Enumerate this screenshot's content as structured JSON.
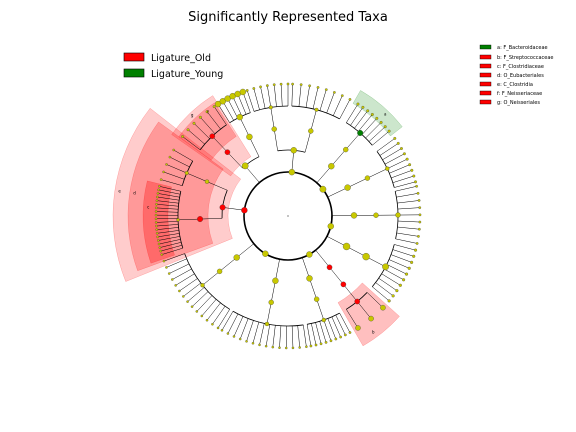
{
  "chart_data": {
    "type": "cladogram",
    "title": "Significantly Represented Taxa",
    "groups": [
      {
        "name": "Ligature_Old",
        "color": "#ff0000"
      },
      {
        "name": "Ligature_Young",
        "color": "#008000"
      }
    ],
    "neutral_color": "#c8c800",
    "taxa_legend": [
      {
        "letter": "a",
        "label": "a: F_Bacteroidaceae",
        "group": "Ligature_Young"
      },
      {
        "letter": "b",
        "label": "b: F_Streptococcaceae",
        "group": "Ligature_Old"
      },
      {
        "letter": "c",
        "label": "c: F_Clostridiaceae",
        "group": "Ligature_Old"
      },
      {
        "letter": "d",
        "label": "d: O_Eubacteriales",
        "group": "Ligature_Old"
      },
      {
        "letter": "e",
        "label": "e: C_Clostridia",
        "group": "Ligature_Old"
      },
      {
        "letter": "f",
        "label": "f: F_Neisseriaceae",
        "group": "Ligature_Old"
      },
      {
        "letter": "g",
        "label": "g: O_Neisseriales",
        "group": "Ligature_Old"
      }
    ]
  }
}
